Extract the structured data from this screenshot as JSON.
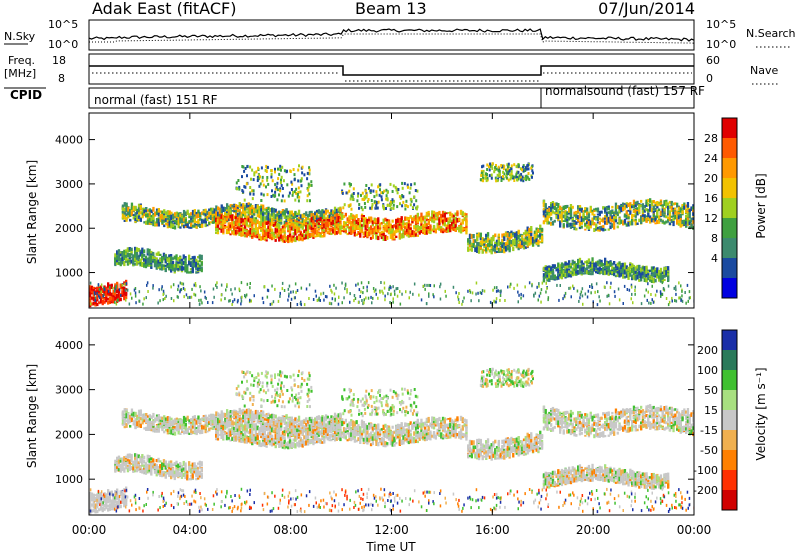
{
  "header": {
    "station": "Adak East (fitACF)",
    "beam": "Beam 13",
    "date": "07/Jun/2014"
  },
  "noise_panel": {
    "left_label": "N.Sky",
    "right_label": "N.Search",
    "tick_top": "10^5",
    "tick_bottom": "10^0",
    "right_tick_top": "10^5",
    "right_tick_bottom": "10^0"
  },
  "freq_panel": {
    "left_label_1": "Freq.",
    "left_label_2": "[MHz]",
    "left_tick_top": "18",
    "left_tick_bottom": "8",
    "right_label": "Nave",
    "right_tick_top": "60",
    "right_tick_bottom": "0"
  },
  "cpid_panel": {
    "label": "CPID",
    "mode_1": "normal (fast) 151 RF",
    "mode_2": "normalsound (fast) 157 RF"
  },
  "power_colorbar": {
    "label": "Power [dB]",
    "ticks": [
      "28",
      "24",
      "20",
      "16",
      "12",
      "8",
      "4"
    ],
    "colors": [
      "#e00000",
      "#ff5a00",
      "#ff9900",
      "#f2c200",
      "#9fd020",
      "#3fa040",
      "#3c8a6e",
      "#1a4aa0",
      "#0000e0"
    ]
  },
  "velocity_colorbar": {
    "label": "Velocity [m s⁻¹]",
    "ticks": [
      "200",
      "100",
      "50",
      "15",
      "-15",
      "-50",
      "-100",
      "-200"
    ],
    "colors": [
      "#1a2fa8",
      "#2a7a5a",
      "#40c030",
      "#a8e080",
      "#c8c8c8",
      "#f0b050",
      "#ff8000",
      "#ff3000",
      "#d00000"
    ]
  },
  "chart_data": [
    {
      "type": "heatmap",
      "title": "",
      "ylabel": "Slant Range [km]",
      "ylim": [
        200,
        4600
      ],
      "yticks": [
        1000,
        2000,
        3000,
        4000
      ],
      "xlim": [
        "00:00",
        "24:00"
      ],
      "colorbar": "Power [dB]",
      "bands": [
        {
          "t": [
            1.3,
            10.0
          ],
          "range": [
            2050,
            2400
          ],
          "level": "mid"
        },
        {
          "t": [
            5.0,
            10.0
          ],
          "range": [
            1750,
            2150
          ],
          "level": "high"
        },
        {
          "t": [
            10.0,
            15.0
          ],
          "range": [
            1800,
            2250
          ],
          "level": "high"
        },
        {
          "t": [
            15.0,
            18.0
          ],
          "range": [
            1500,
            1900
          ],
          "level": "mid"
        },
        {
          "t": [
            18.0,
            24.0
          ],
          "range": [
            2000,
            2500
          ],
          "level": "mid"
        },
        {
          "t": [
            0.0,
            1.5
          ],
          "range": [
            300,
            700
          ],
          "level": "max"
        },
        {
          "t": [
            1.0,
            4.5
          ],
          "range": [
            1050,
            1400
          ],
          "level": "low"
        },
        {
          "t": [
            18.0,
            23.0
          ],
          "range": [
            850,
            1150
          ],
          "level": "low"
        }
      ]
    },
    {
      "type": "heatmap",
      "title": "",
      "xlabel": "Time UT",
      "ylabel": "Slant Range [km]",
      "ylim": [
        200,
        4600
      ],
      "yticks": [
        1000,
        2000,
        3000,
        4000
      ],
      "xlim": [
        "00:00",
        "24:00"
      ],
      "xticks": [
        "00:00",
        "04:00",
        "08:00",
        "12:00",
        "16:00",
        "20:00",
        "00:00"
      ],
      "colorbar": "Velocity [m s⁻¹]"
    }
  ]
}
